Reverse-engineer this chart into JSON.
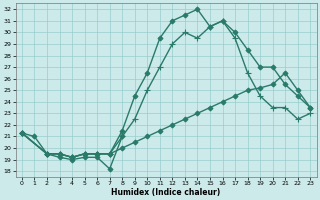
{
  "xlabel": "Humidex (Indice chaleur)",
  "background_color": "#cceaea",
  "grid_color": "#99cccc",
  "line_color": "#2a7a6a",
  "xlim": [
    -0.5,
    23.5
  ],
  "ylim": [
    17.5,
    32.5
  ],
  "xticks": [
    0,
    1,
    2,
    3,
    4,
    5,
    6,
    7,
    8,
    9,
    10,
    11,
    12,
    13,
    14,
    15,
    16,
    17,
    18,
    19,
    20,
    21,
    22,
    23
  ],
  "yticks": [
    18,
    19,
    20,
    21,
    22,
    23,
    24,
    25,
    26,
    27,
    28,
    29,
    30,
    31,
    32
  ],
  "lines": [
    {
      "x": [
        0,
        1,
        2,
        3,
        4,
        5,
        6,
        7,
        8
      ],
      "y": [
        21.3,
        21.0,
        19.5,
        19.2,
        19.0,
        19.2,
        19.2,
        18.2,
        21.0
      ],
      "marker": "D",
      "markersize": 2.5,
      "linewidth": 1.0
    },
    {
      "x": [
        0,
        2,
        3,
        4,
        5,
        6,
        7,
        8,
        9,
        10,
        11,
        12,
        13,
        14,
        15,
        16,
        17,
        18,
        19,
        20,
        21,
        22,
        23
      ],
      "y": [
        21.3,
        19.5,
        19.5,
        19.2,
        19.5,
        19.5,
        19.5,
        20.0,
        20.5,
        21.0,
        21.5,
        22.0,
        22.5,
        23.0,
        23.5,
        24.0,
        24.5,
        25.0,
        25.2,
        25.5,
        26.5,
        25.0,
        23.5
      ],
      "marker": "D",
      "markersize": 2.5,
      "linewidth": 1.0
    },
    {
      "x": [
        0,
        2,
        3,
        4,
        5,
        6,
        7,
        8,
        9,
        10,
        11,
        12,
        13,
        14,
        15,
        16,
        17,
        18,
        19,
        20,
        21,
        22,
        23
      ],
      "y": [
        21.3,
        19.5,
        19.5,
        19.2,
        19.5,
        19.5,
        19.5,
        21.5,
        24.5,
        26.5,
        29.5,
        31.0,
        31.5,
        32.0,
        30.5,
        31.0,
        30.0,
        28.5,
        27.0,
        27.0,
        25.5,
        24.5,
        23.5
      ],
      "marker": "D",
      "markersize": 2.5,
      "linewidth": 1.0
    },
    {
      "x": [
        0,
        2,
        3,
        4,
        5,
        6,
        7,
        8,
        9,
        10,
        11,
        12,
        13,
        14,
        15,
        16,
        17,
        18,
        19,
        20,
        21,
        22,
        23
      ],
      "y": [
        21.3,
        19.5,
        19.5,
        19.2,
        19.5,
        19.5,
        19.5,
        21.0,
        22.5,
        25.0,
        27.0,
        29.0,
        30.0,
        29.5,
        30.5,
        31.0,
        29.5,
        26.5,
        24.5,
        23.5,
        23.5,
        22.5,
        23.0
      ],
      "marker": "+",
      "markersize": 4,
      "linewidth": 1.0
    }
  ]
}
